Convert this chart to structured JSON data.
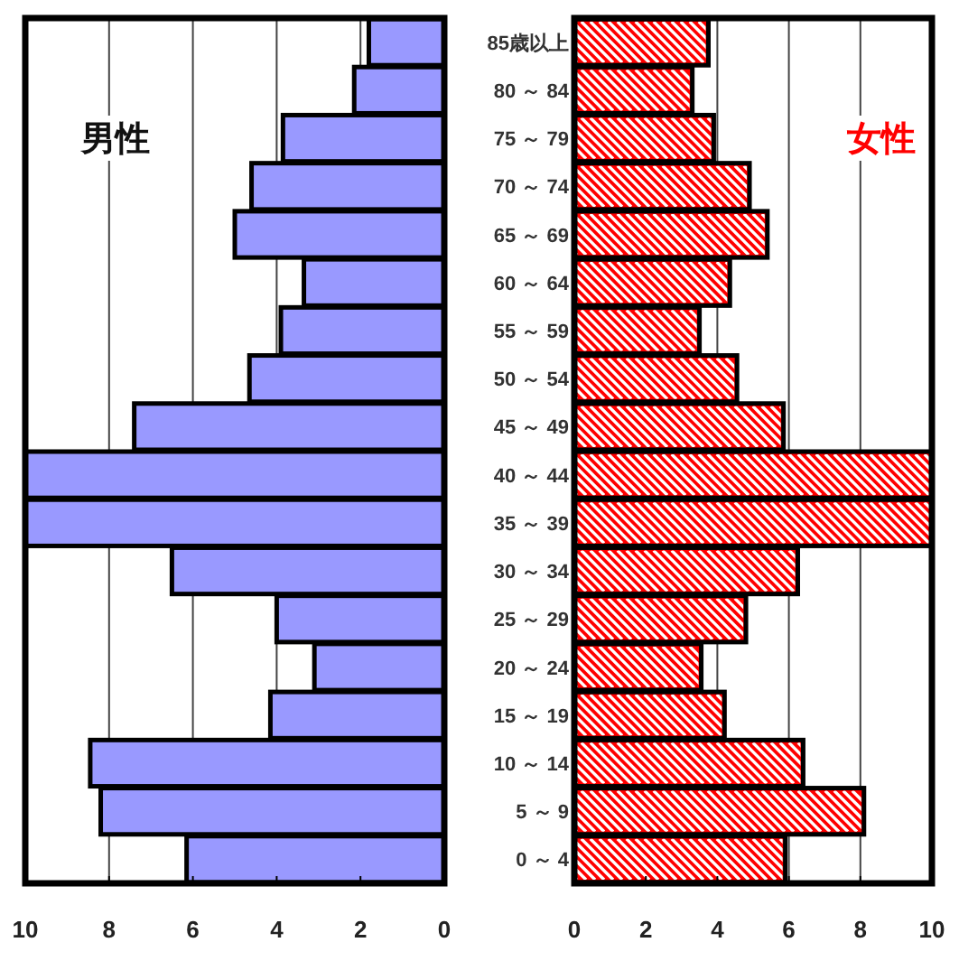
{
  "chart_data": [
    {
      "type": "bar",
      "orientation": "horizontal",
      "categories": [
        null,
        null,
        null,
        null,
        null,
        null,
        null,
        null,
        null,
        null,
        null,
        null,
        null,
        null,
        null,
        null,
        null,
        null
      ],
      "series": [
        {
          "color": "#9999ff",
          "values": [
            1.8,
            2.15,
            3.85,
            4.6,
            5.0,
            3.35,
            3.9,
            4.65,
            7.4,
            10,
            10,
            6.5,
            4.0,
            3.1,
            4.15,
            8.45,
            8.2,
            6.15
          ]
        }
      ],
      "xlim": [
        10,
        0
      ],
      "xticks": [
        10,
        8,
        6,
        4,
        2,
        0
      ],
      "grid": "x",
      "tick_labels": "x",
      "annotations": [
        "男性"
      ]
    },
    {
      "type": "bar",
      "orientation": "horizontal",
      "categories": [
        "85歳以上",
        "80 ～ 84",
        "75 ～ 79",
        "70 ～ 74",
        "65 ～ 69",
        "60 ～ 64",
        "55 ～ 59",
        "50 ～ 54",
        "45 ～ 49",
        "40 ～ 44",
        "35 ～ 39",
        "30 ～ 34",
        "25 ～ 29",
        "20 ～ 24",
        "15 ～ 19",
        "10 ～ 14",
        "5 ～ 9",
        "0 ～ 4"
      ],
      "series": [
        {
          "color": "#ff0000",
          "values": [
            3.75,
            3.3,
            3.9,
            4.9,
            5.4,
            4.35,
            3.5,
            4.55,
            5.85,
            10,
            10,
            6.25,
            4.8,
            3.55,
            4.2,
            6.4,
            8.1,
            5.9
          ]
        }
      ],
      "xlim": [
        0,
        10
      ],
      "xticks": [
        0,
        2,
        4,
        6,
        8,
        10
      ],
      "grid": "x",
      "annotations": [
        "女性"
      ]
    }
  ]
}
